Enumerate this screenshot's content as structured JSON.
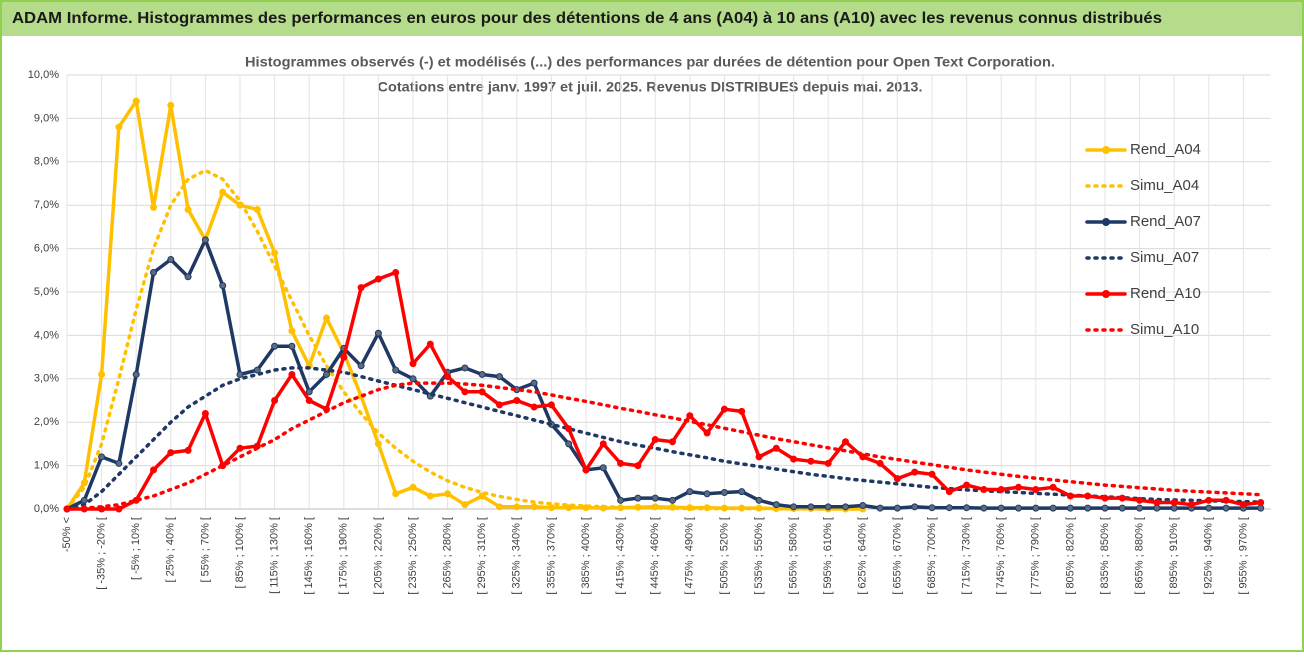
{
  "header": {
    "title": "ADAM Informe. Histogrammes des performances en euros pour des détentions de 4 ans (A04) à 10 ans (A10) avec les revenus connus distribués"
  },
  "chart_data": {
    "type": "line",
    "title": "Histogrammes observés (-) et modélisés (...) des performances par durées de détention pour Open Text Corporation.",
    "subtitle": "Cotations entre janv. 1997 et juil. 2025. Revenus DISTRIBUES depuis mai. 2013.",
    "categories": [
      "-50% <",
      null,
      "[ -35% ; -20% [",
      null,
      "[ -5% ; 10% [",
      null,
      "[ 25% ; 40% [",
      null,
      "[ 55% ; 70% [",
      null,
      "[ 85% ; 100% [",
      null,
      "[ 115% ; 130% [",
      null,
      "[ 145% ; 160% [",
      null,
      "[ 175% ; 190% [",
      null,
      "[ 205% ; 220% [",
      null,
      "[ 235% ; 250% [",
      null,
      "[ 265% ; 280% [",
      null,
      "[ 295% ; 310% [",
      null,
      "[ 325% ; 340% [",
      null,
      "[ 355% ; 370% [",
      null,
      "[ 385% ; 400% [",
      null,
      "[ 415% ; 430% [",
      null,
      "[ 445% ; 460% [",
      null,
      "[ 475% ; 490% [",
      null,
      "[ 505% ; 520% [",
      null,
      "[ 535% ; 550% [",
      null,
      "[ 565% ; 580% [",
      null,
      "[ 595% ; 610% [",
      null,
      "[ 625% ; 640% [",
      null,
      "[ 655% ; 670% [",
      null,
      "[ 685% ; 700% [",
      null,
      "[ 715% ; 730% [",
      null,
      "[ 745% ; 760% [",
      null,
      "[ 775% ; 790% [",
      null,
      "[ 805% ; 820% [",
      null,
      "[ 835% ; 850% [",
      null,
      "[ 865% ; 880% [",
      null,
      "[ 895% ; 910% [",
      null,
      "[ 925% ; 940% [",
      null,
      "[ 955% ; 970% [",
      null
    ],
    "series": [
      {
        "name": "Rend_A04",
        "color": "#ffc000",
        "line_style": "solid",
        "markers": true,
        "values": [
          0,
          0.6,
          3.1,
          8.8,
          9.4,
          6.95,
          9.3,
          6.9,
          6.2,
          7.3,
          7.0,
          6.9,
          5.9,
          4.1,
          3.3,
          4.4,
          3.6,
          2.6,
          1.5,
          0.35,
          0.5,
          0.3,
          0.35,
          0.1,
          0.3,
          0.05,
          0.05,
          0.05,
          0.03,
          0.03,
          0.03,
          0.02,
          0.03,
          0.04,
          0.05,
          0.04,
          0.03,
          0.03,
          0.02,
          0.02,
          0.02,
          0.01,
          0.01,
          0.01,
          0,
          0,
          0,
          null,
          null,
          null,
          null,
          null,
          null,
          null,
          null,
          null,
          null,
          null,
          null,
          null,
          null,
          null,
          null,
          null,
          null,
          null,
          null,
          null,
          null,
          null
        ]
      },
      {
        "name": "Simu_A04",
        "color": "#ffc000",
        "line_style": "dotted",
        "markers": false,
        "values": [
          0,
          0.5,
          1.5,
          3.0,
          4.6,
          6.0,
          7.0,
          7.6,
          7.8,
          7.6,
          7.1,
          6.4,
          5.6,
          4.8,
          4.0,
          3.3,
          2.7,
          2.2,
          1.75,
          1.4,
          1.1,
          0.85,
          0.65,
          0.5,
          0.38,
          0.29,
          0.22,
          0.16,
          0.12,
          0.09,
          0.07,
          0.05,
          0.04,
          0.03,
          0.02,
          0.02,
          0.01,
          0.01,
          0.01,
          0.01,
          0.01,
          0.01,
          0,
          0,
          0,
          0,
          0,
          null,
          null,
          null,
          null,
          null,
          null,
          null,
          null,
          null,
          null,
          null,
          null,
          null,
          null,
          null,
          null,
          null,
          null,
          null,
          null,
          null,
          null,
          null
        ]
      },
      {
        "name": "Rend_A07",
        "color": "#1f3864",
        "line_style": "solid",
        "markers": true,
        "values": [
          0,
          0.2,
          1.2,
          1.05,
          3.1,
          5.45,
          5.75,
          5.35,
          6.2,
          5.15,
          3.1,
          3.2,
          3.75,
          3.75,
          2.7,
          3.1,
          3.7,
          3.3,
          4.05,
          3.2,
          3.0,
          2.6,
          3.15,
          3.25,
          3.1,
          3.05,
          2.75,
          2.9,
          1.95,
          1.5,
          0.9,
          0.95,
          0.2,
          0.25,
          0.25,
          0.2,
          0.4,
          0.35,
          0.38,
          0.4,
          0.2,
          0.1,
          0.05,
          0.05,
          0.05,
          0.05,
          0.08,
          0.02,
          0.02,
          0.05,
          0.03,
          0.03,
          0.03,
          0.02,
          0.02,
          0.02,
          0.02,
          0.02,
          0.02,
          0.02,
          0.02,
          0.02,
          0.02,
          0.02,
          0.02,
          0.02,
          0.02,
          0.02,
          0.02,
          0.02
        ]
      },
      {
        "name": "Simu_A07",
        "color": "#1f3864",
        "line_style": "dotted",
        "markers": false,
        "values": [
          0,
          0.1,
          0.4,
          0.8,
          1.2,
          1.6,
          2.0,
          2.35,
          2.6,
          2.85,
          3.0,
          3.1,
          3.2,
          3.25,
          3.25,
          3.2,
          3.15,
          3.05,
          2.95,
          2.85,
          2.75,
          2.65,
          2.55,
          2.45,
          2.35,
          2.25,
          2.15,
          2.05,
          1.95,
          1.85,
          1.75,
          1.65,
          1.55,
          1.47,
          1.4,
          1.32,
          1.25,
          1.18,
          1.1,
          1.04,
          0.98,
          0.92,
          0.86,
          0.8,
          0.75,
          0.7,
          0.66,
          0.62,
          0.58,
          0.54,
          0.5,
          0.47,
          0.44,
          0.42,
          0.4,
          0.38,
          0.36,
          0.34,
          0.32,
          0.3,
          0.28,
          0.26,
          0.24,
          0.22,
          0.21,
          0.2,
          0.19,
          0.18,
          0.17,
          0.16
        ]
      },
      {
        "name": "Rend_A10",
        "color": "#ff0000",
        "line_style": "solid",
        "markers": true,
        "values": [
          0,
          0,
          0,
          0,
          0.2,
          0.9,
          1.3,
          1.35,
          2.2,
          1.0,
          1.4,
          1.45,
          2.5,
          3.1,
          2.5,
          2.3,
          3.5,
          5.1,
          5.3,
          5.45,
          3.35,
          3.8,
          3.05,
          2.7,
          2.7,
          2.4,
          2.5,
          2.35,
          2.4,
          1.85,
          0.9,
          1.5,
          1.05,
          1.0,
          1.6,
          1.55,
          2.15,
          1.75,
          2.3,
          2.25,
          1.2,
          1.4,
          1.15,
          1.1,
          1.05,
          1.55,
          1.2,
          1.05,
          0.7,
          0.85,
          0.8,
          0.4,
          0.55,
          0.45,
          0.45,
          0.5,
          0.45,
          0.5,
          0.3,
          0.3,
          0.25,
          0.25,
          0.2,
          0.15,
          0.15,
          0.1,
          0.2,
          0.2,
          0.1,
          0.15
        ]
      },
      {
        "name": "Simu_A10",
        "color": "#ff0000",
        "line_style": "dotted",
        "markers": false,
        "values": [
          0,
          0.02,
          0.05,
          0.1,
          0.2,
          0.3,
          0.45,
          0.6,
          0.8,
          1.0,
          1.2,
          1.4,
          1.6,
          1.85,
          2.05,
          2.25,
          2.45,
          2.6,
          2.75,
          2.85,
          2.9,
          2.9,
          2.9,
          2.88,
          2.85,
          2.8,
          2.75,
          2.7,
          2.63,
          2.55,
          2.48,
          2.4,
          2.32,
          2.25,
          2.17,
          2.1,
          2.02,
          1.94,
          1.86,
          1.78,
          1.7,
          1.62,
          1.55,
          1.48,
          1.41,
          1.34,
          1.27,
          1.2,
          1.14,
          1.08,
          1.02,
          0.96,
          0.9,
          0.85,
          0.8,
          0.75,
          0.71,
          0.67,
          0.63,
          0.59,
          0.55,
          0.52,
          0.49,
          0.46,
          0.43,
          0.41,
          0.39,
          0.37,
          0.35,
          0.33
        ]
      }
    ],
    "ylim": [
      0,
      10
    ],
    "yticks": [
      {
        "value": 0,
        "label": "0,0%"
      },
      {
        "value": 1,
        "label": "1,0%"
      },
      {
        "value": 2,
        "label": "2,0%"
      },
      {
        "value": 3,
        "label": "3,0%"
      },
      {
        "value": 4,
        "label": "4,0%"
      },
      {
        "value": 5,
        "label": "5,0%"
      },
      {
        "value": 6,
        "label": "6,0%"
      },
      {
        "value": 7,
        "label": "7,0%"
      },
      {
        "value": 8,
        "label": "8,0%"
      },
      {
        "value": 9,
        "label": "9,0%"
      },
      {
        "value": 10,
        "label": "10,0%"
      }
    ],
    "grid": true,
    "legend": "right"
  }
}
